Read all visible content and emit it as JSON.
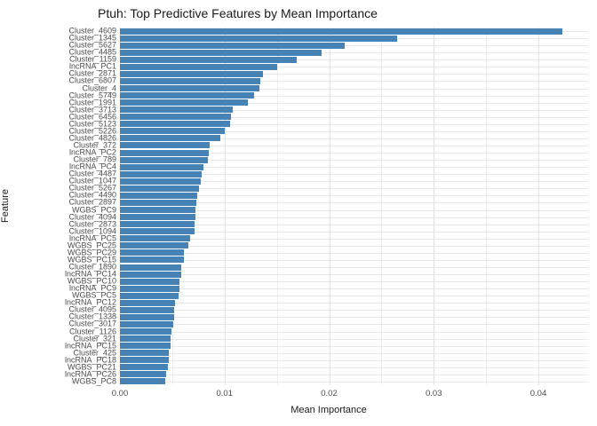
{
  "chart_data": {
    "type": "bar",
    "orientation": "horizontal",
    "title": "Ptuh: Top Predictive Features by Mean Importance",
    "xlabel": "Mean Importance",
    "ylabel": "Feature",
    "legend": "none",
    "grid": true,
    "xlim": [
      0,
      0.0448
    ],
    "xticks": {
      "values": [
        0,
        0.01,
        0.02,
        0.03,
        0.04
      ],
      "labels": [
        "0.00",
        "0.01",
        "0.02",
        "0.03",
        "0.04"
      ]
    },
    "x_minor_ticks": [
      0.005,
      0.015,
      0.025,
      0.035
    ],
    "bar_color": "#4682B4",
    "grid_major_color": "#E0E0E0",
    "grid_minor_color": "#EFEFEF",
    "row_grid_color": "#E8E8E8",
    "tick_label_color": "#4D4D4D",
    "categories": [
      "Cluster_4609",
      "Cluster_1345",
      "Cluster_5627",
      "Cluster_4485",
      "Cluster_1159",
      "lncRNA_PC1",
      "Cluster_2871",
      "Cluster_6807",
      "Cluster_4",
      "Cluster_5749",
      "Cluster_1991",
      "Cluster_3713",
      "Cluster_6456",
      "Cluster_5123",
      "Cluster_5226",
      "Cluster_4826",
      "Cluster_372",
      "lncRNA_PC2",
      "Cluster_789",
      "lncRNA_PC4",
      "Cluster_4487",
      "Cluster_1047",
      "Cluster_5267",
      "Cluster_4490",
      "Cluster_2897",
      "WGBS_PC9",
      "Cluster_4094",
      "Cluster_2873",
      "Cluster_1094",
      "lncRNA_PC5",
      "WGBS_PC25",
      "WGBS_PC29",
      "WGBS_PC15",
      "Cluster_1890",
      "lncRNA_PC14",
      "WGBS_PC10",
      "lncRNA_PC9",
      "WGBS_PC5",
      "lncRNA_PC12",
      "Cluster_4095",
      "Cluster_1338",
      "Cluster_3017",
      "Cluster_1126",
      "Cluster_321",
      "lncRNA_PC15",
      "Cluster_425",
      "lncRNA_PC18",
      "WGBS_PC21",
      "lncRNA_PC26",
      "WGBS_PC8"
    ],
    "values": [
      0.0423,
      0.0265,
      0.0215,
      0.0193,
      0.0169,
      0.015,
      0.0137,
      0.0134,
      0.0133,
      0.0128,
      0.0122,
      0.0108,
      0.0106,
      0.0105,
      0.01,
      0.0096,
      0.0086,
      0.0085,
      0.0084,
      0.008,
      0.0078,
      0.0077,
      0.0076,
      0.0074,
      0.0073,
      0.0072,
      0.0072,
      0.0071,
      0.0071,
      0.0067,
      0.0065,
      0.0061,
      0.0061,
      0.0059,
      0.0059,
      0.0057,
      0.0057,
      0.0056,
      0.0053,
      0.0052,
      0.0052,
      0.0051,
      0.0049,
      0.0048,
      0.0048,
      0.0047,
      0.0047,
      0.0046,
      0.0044,
      0.0043
    ]
  }
}
